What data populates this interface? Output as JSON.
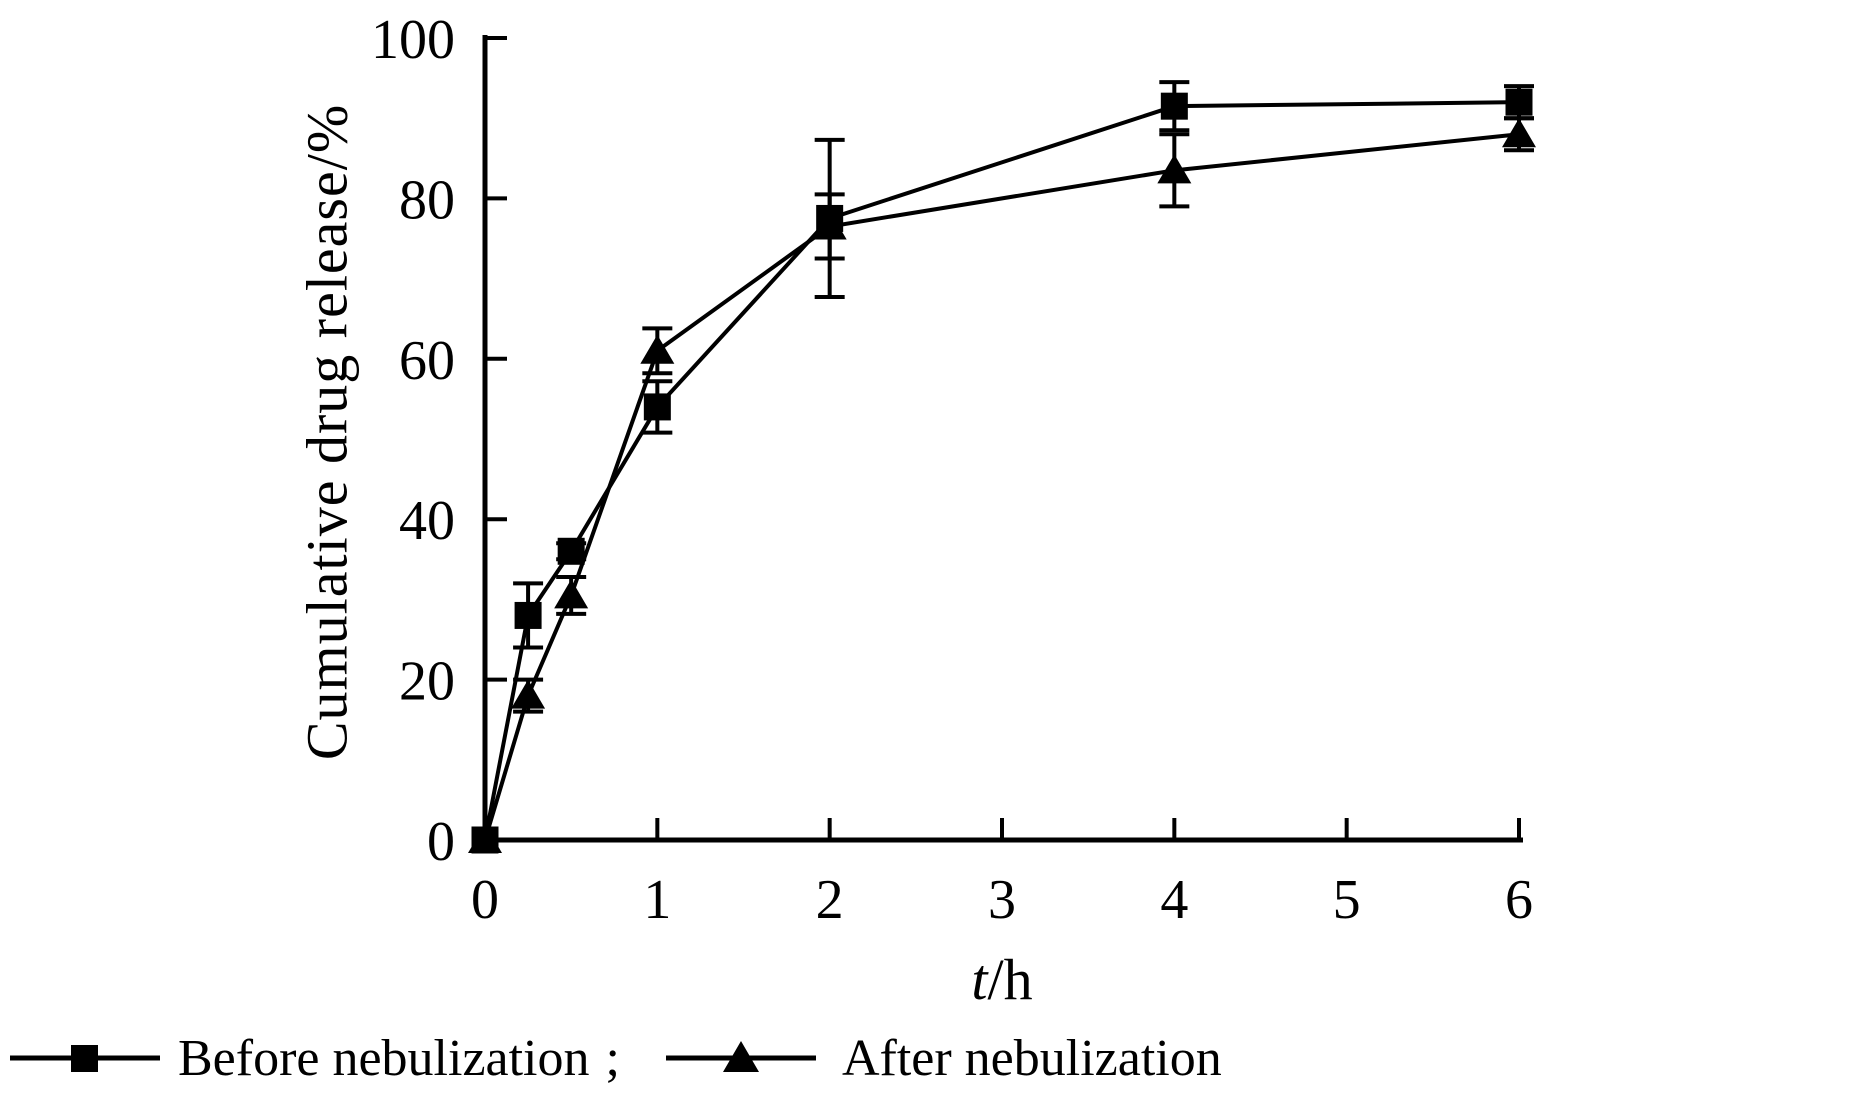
{
  "figure": {
    "background": "#ffffff",
    "ink_color": "#000000"
  },
  "chart_data": {
    "type": "line",
    "title": "",
    "xlabel": "t/h",
    "xlabel_italic": "t",
    "xlabel_unit": "/h",
    "ylabel": "Cumulative drug release/%",
    "xlim": [
      0,
      6
    ],
    "ylim": [
      0,
      100
    ],
    "x_ticks": [
      0,
      1,
      2,
      3,
      4,
      5,
      6
    ],
    "y_ticks": [
      0,
      20,
      40,
      60,
      80,
      100
    ],
    "grid": false,
    "legend_position": "bottom-left",
    "legend_separator": ";",
    "series": [
      {
        "name": "Before nebulization",
        "marker": "square",
        "x": [
          0,
          0.25,
          0.5,
          1,
          2,
          4,
          6
        ],
        "values": [
          0,
          28,
          36,
          54,
          77.5,
          91.5,
          92
        ],
        "errors": [
          0,
          4,
          1,
          3.2,
          9.8,
          3,
          2
        ]
      },
      {
        "name": "After nebulization",
        "marker": "triangle",
        "x": [
          0,
          0.25,
          0.5,
          1,
          2,
          4,
          6
        ],
        "values": [
          0,
          18,
          30.5,
          61,
          76.5,
          83.5,
          88
        ],
        "errors": [
          0,
          2,
          2.3,
          2.8,
          4,
          4.5,
          2
        ]
      }
    ]
  }
}
